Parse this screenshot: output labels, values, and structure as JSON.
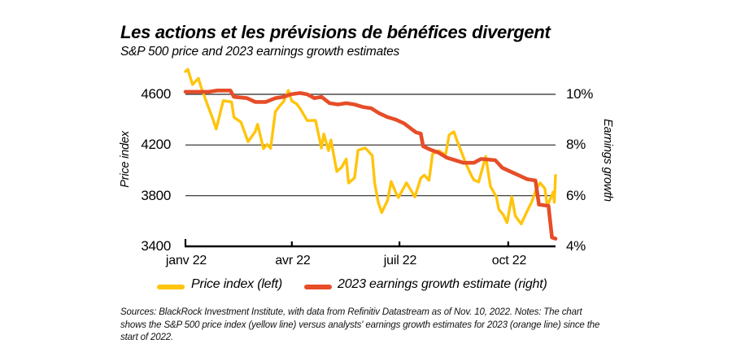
{
  "chart_data": {
    "type": "line",
    "title": "Les actions et les prévisions de bénéfices divergent",
    "subtitle": "S&P 500 price and 2023 earnings growth estimates",
    "grid": true,
    "legend_position": "bottom",
    "x_axis": {
      "labels": [
        "janv 22",
        "avr 22",
        "juil 22",
        "oct 22"
      ],
      "tick_dates": [
        "2022-01-01",
        "2022-04-01",
        "2022-07-01",
        "2022-10-01"
      ],
      "range": [
        "2022-01-01",
        "2022-11-10"
      ]
    },
    "y_left": {
      "label": "Price index",
      "ticks": [
        4600,
        4200,
        3800,
        3400
      ],
      "range": [
        3400,
        4600
      ]
    },
    "y_right": {
      "label": "Earnings growth",
      "ticks": [
        "10%",
        "8%",
        "6%",
        "4%"
      ],
      "tick_values": [
        10,
        8,
        6,
        4
      ],
      "range": [
        4,
        10
      ]
    },
    "series": [
      {
        "name": "Price index (left)",
        "axis": "left",
        "color": "#FFC40C",
        "width": 3.4,
        "points": [
          [
            "2022-01-01",
            4780
          ],
          [
            "2022-01-03",
            4797
          ],
          [
            "2022-01-07",
            4677
          ],
          [
            "2022-01-12",
            4726
          ],
          [
            "2022-01-14",
            4663
          ],
          [
            "2022-01-19",
            4533
          ],
          [
            "2022-01-24",
            4410
          ],
          [
            "2022-01-27",
            4326
          ],
          [
            "2022-02-02",
            4550
          ],
          [
            "2022-02-09",
            4540
          ],
          [
            "2022-02-11",
            4419
          ],
          [
            "2022-02-17",
            4380
          ],
          [
            "2022-02-23",
            4226
          ],
          [
            "2022-03-01",
            4306
          ],
          [
            "2022-03-03",
            4363
          ],
          [
            "2022-03-08",
            4171
          ],
          [
            "2022-03-11",
            4204
          ],
          [
            "2022-03-14",
            4173
          ],
          [
            "2022-03-18",
            4463
          ],
          [
            "2022-03-22",
            4512
          ],
          [
            "2022-03-25",
            4543
          ],
          [
            "2022-03-29",
            4631
          ],
          [
            "2022-04-01",
            4546
          ],
          [
            "2022-04-05",
            4525
          ],
          [
            "2022-04-08",
            4488
          ],
          [
            "2022-04-14",
            4393
          ],
          [
            "2022-04-21",
            4394
          ],
          [
            "2022-04-26",
            4175
          ],
          [
            "2022-04-28",
            4287
          ],
          [
            "2022-05-02",
            4155
          ],
          [
            "2022-05-04",
            4240
          ],
          [
            "2022-05-09",
            3991
          ],
          [
            "2022-05-13",
            4024
          ],
          [
            "2022-05-17",
            4089
          ],
          [
            "2022-05-19",
            3900
          ],
          [
            "2022-05-24",
            3941
          ],
          [
            "2022-05-27",
            4158
          ],
          [
            "2022-06-02",
            4177
          ],
          [
            "2022-06-08",
            4116
          ],
          [
            "2022-06-10",
            3901
          ],
          [
            "2022-06-13",
            3750
          ],
          [
            "2022-06-16",
            3667
          ],
          [
            "2022-06-21",
            3765
          ],
          [
            "2022-06-24",
            3912
          ],
          [
            "2022-06-28",
            3821
          ],
          [
            "2022-06-30",
            3785
          ],
          [
            "2022-07-07",
            3902
          ],
          [
            "2022-07-14",
            3790
          ],
          [
            "2022-07-19",
            3937
          ],
          [
            "2022-07-22",
            3962
          ],
          [
            "2022-07-26",
            3921
          ],
          [
            "2022-07-29",
            4130
          ],
          [
            "2022-08-03",
            4155
          ],
          [
            "2022-08-09",
            4122
          ],
          [
            "2022-08-12",
            4280
          ],
          [
            "2022-08-16",
            4305
          ],
          [
            "2022-08-19",
            4228
          ],
          [
            "2022-08-26",
            4058
          ],
          [
            "2022-08-31",
            3955
          ],
          [
            "2022-09-02",
            3924
          ],
          [
            "2022-09-06",
            3908
          ],
          [
            "2022-09-12",
            4110
          ],
          [
            "2022-09-16",
            3873
          ],
          [
            "2022-09-21",
            3790
          ],
          [
            "2022-09-23",
            3693
          ],
          [
            "2022-09-27",
            3647
          ],
          [
            "2022-09-30",
            3586
          ],
          [
            "2022-10-04",
            3791
          ],
          [
            "2022-10-07",
            3640
          ],
          [
            "2022-10-12",
            3577
          ],
          [
            "2022-10-17",
            3678
          ],
          [
            "2022-10-21",
            3753
          ],
          [
            "2022-10-25",
            3859
          ],
          [
            "2022-10-28",
            3901
          ],
          [
            "2022-11-01",
            3856
          ],
          [
            "2022-11-03",
            3719
          ],
          [
            "2022-11-08",
            3828
          ],
          [
            "2022-11-09",
            3748
          ],
          [
            "2022-11-10",
            3960
          ]
        ]
      },
      {
        "name": "2023 earnings growth estimate (right)",
        "axis": "right",
        "color": "#E64D28",
        "width": 4.6,
        "points": [
          [
            "2022-01-01",
            10.1
          ],
          [
            "2022-01-21",
            10.1
          ],
          [
            "2022-01-28",
            10.15
          ],
          [
            "2022-02-08",
            10.15
          ],
          [
            "2022-02-11",
            9.9
          ],
          [
            "2022-02-22",
            9.85
          ],
          [
            "2022-03-01",
            9.7
          ],
          [
            "2022-03-10",
            9.7
          ],
          [
            "2022-03-18",
            9.85
          ],
          [
            "2022-03-25",
            9.9
          ],
          [
            "2022-03-31",
            10.0
          ],
          [
            "2022-04-08",
            10.05
          ],
          [
            "2022-04-14",
            10.0
          ],
          [
            "2022-04-20",
            9.85
          ],
          [
            "2022-04-26",
            9.9
          ],
          [
            "2022-05-03",
            9.65
          ],
          [
            "2022-05-10",
            9.6
          ],
          [
            "2022-05-17",
            9.65
          ],
          [
            "2022-05-24",
            9.6
          ],
          [
            "2022-05-31",
            9.5
          ],
          [
            "2022-06-07",
            9.45
          ],
          [
            "2022-06-14",
            9.25
          ],
          [
            "2022-06-21",
            9.1
          ],
          [
            "2022-06-28",
            9.0
          ],
          [
            "2022-07-05",
            8.85
          ],
          [
            "2022-07-12",
            8.6
          ],
          [
            "2022-07-15",
            8.5
          ],
          [
            "2022-07-19",
            8.45
          ],
          [
            "2022-07-21",
            7.95
          ],
          [
            "2022-07-28",
            7.8
          ],
          [
            "2022-08-03",
            7.7
          ],
          [
            "2022-08-10",
            7.5
          ],
          [
            "2022-08-17",
            7.4
          ],
          [
            "2022-08-24",
            7.3
          ],
          [
            "2022-09-02",
            7.3
          ],
          [
            "2022-09-08",
            7.45
          ],
          [
            "2022-09-20",
            7.4
          ],
          [
            "2022-09-26",
            7.1
          ],
          [
            "2022-10-03",
            6.95
          ],
          [
            "2022-10-10",
            6.8
          ],
          [
            "2022-10-17",
            6.65
          ],
          [
            "2022-10-24",
            6.6
          ],
          [
            "2022-10-27",
            5.65
          ],
          [
            "2022-11-04",
            5.6
          ],
          [
            "2022-11-07",
            4.35
          ],
          [
            "2022-11-10",
            4.3
          ]
        ]
      }
    ]
  },
  "footnote": {
    "lines": [
      "Sources: BlackRock Investment Institute, with data from Refinitiv Datastream as of Nov. 10, 2022.  Notes: The chart",
      "shows the S&P 500 price index (yellow line) versus analysts' earnings growth estimates for 2023 (orange line) since the",
      "start of 2022."
    ]
  }
}
